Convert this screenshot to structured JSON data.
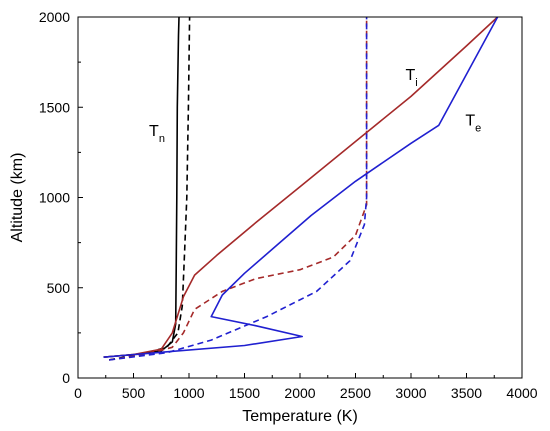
{
  "chart_data": {
    "type": "line",
    "title": "",
    "xlabel": "Temperature (K)",
    "ylabel": "Altitude (km)",
    "xlim": [
      0,
      4000
    ],
    "ylim": [
      0,
      2000
    ],
    "x_ticks": [
      0,
      500,
      1000,
      1500,
      2000,
      2500,
      3000,
      3500,
      4000
    ],
    "y_ticks": [
      0,
      500,
      1000,
      1500,
      2000
    ],
    "grid": false,
    "legend": "none",
    "annotations": [
      {
        "text": "T",
        "sub": "n",
        "x": 640,
        "y": 1340,
        "color": "#000000"
      },
      {
        "text": "T",
        "sub": "i",
        "x": 2950,
        "y": 1650,
        "color": "#000000"
      },
      {
        "text": "T",
        "sub": "e",
        "x": 3490,
        "y": 1400,
        "color": "#000000"
      }
    ],
    "series": [
      {
        "color": "#000000",
        "style": "solid",
        "points": [
          [
            230,
            115
          ],
          [
            500,
            130
          ],
          [
            750,
            150
          ],
          [
            850,
            200
          ],
          [
            880,
            300
          ],
          [
            885,
            600
          ],
          [
            890,
            1000
          ],
          [
            895,
            1500
          ],
          [
            905,
            1900
          ],
          [
            910,
            2000
          ]
        ]
      },
      {
        "color": "#000000",
        "style": "dashed",
        "points": [
          [
            280,
            100
          ],
          [
            550,
            130
          ],
          [
            800,
            170
          ],
          [
            900,
            250
          ],
          [
            940,
            400
          ],
          [
            960,
            700
          ],
          [
            980,
            1000
          ],
          [
            995,
            1500
          ],
          [
            1005,
            2000
          ]
        ]
      },
      {
        "color": "#a52a2a",
        "style": "solid",
        "points": [
          [
            230,
            115
          ],
          [
            500,
            130
          ],
          [
            750,
            160
          ],
          [
            850,
            250
          ],
          [
            950,
            450
          ],
          [
            1050,
            570
          ],
          [
            1250,
            680
          ],
          [
            1600,
            860
          ],
          [
            2000,
            1060
          ],
          [
            2500,
            1310
          ],
          [
            3000,
            1560
          ],
          [
            3500,
            1840
          ],
          [
            3780,
            2000
          ]
        ]
      },
      {
        "color": "#a52a2a",
        "style": "dashed",
        "points": [
          [
            280,
            100
          ],
          [
            600,
            130
          ],
          [
            850,
            170
          ],
          [
            950,
            250
          ],
          [
            1050,
            380
          ],
          [
            1300,
            480
          ],
          [
            1600,
            550
          ],
          [
            2000,
            600
          ],
          [
            2300,
            670
          ],
          [
            2500,
            790
          ],
          [
            2600,
            960
          ],
          [
            2600,
            1200
          ],
          [
            2600,
            1600
          ],
          [
            2600,
            2000
          ]
        ]
      },
      {
        "color": "#2020d0",
        "style": "solid",
        "points": [
          [
            230,
            115
          ],
          [
            800,
            145
          ],
          [
            1500,
            180
          ],
          [
            2020,
            230
          ],
          [
            1600,
            290
          ],
          [
            1200,
            340
          ],
          [
            1300,
            460
          ],
          [
            1500,
            580
          ],
          [
            1800,
            740
          ],
          [
            2100,
            900
          ],
          [
            2500,
            1090
          ],
          [
            3000,
            1300
          ],
          [
            3250,
            1400
          ],
          [
            3780,
            2000
          ]
        ]
      },
      {
        "color": "#2020d0",
        "style": "dashed",
        "points": [
          [
            280,
            100
          ],
          [
            800,
            140
          ],
          [
            1200,
            210
          ],
          [
            1700,
            340
          ],
          [
            2150,
            480
          ],
          [
            2450,
            650
          ],
          [
            2580,
            850
          ],
          [
            2600,
            1000
          ],
          [
            2600,
            1400
          ],
          [
            2600,
            2000
          ]
        ]
      }
    ]
  }
}
